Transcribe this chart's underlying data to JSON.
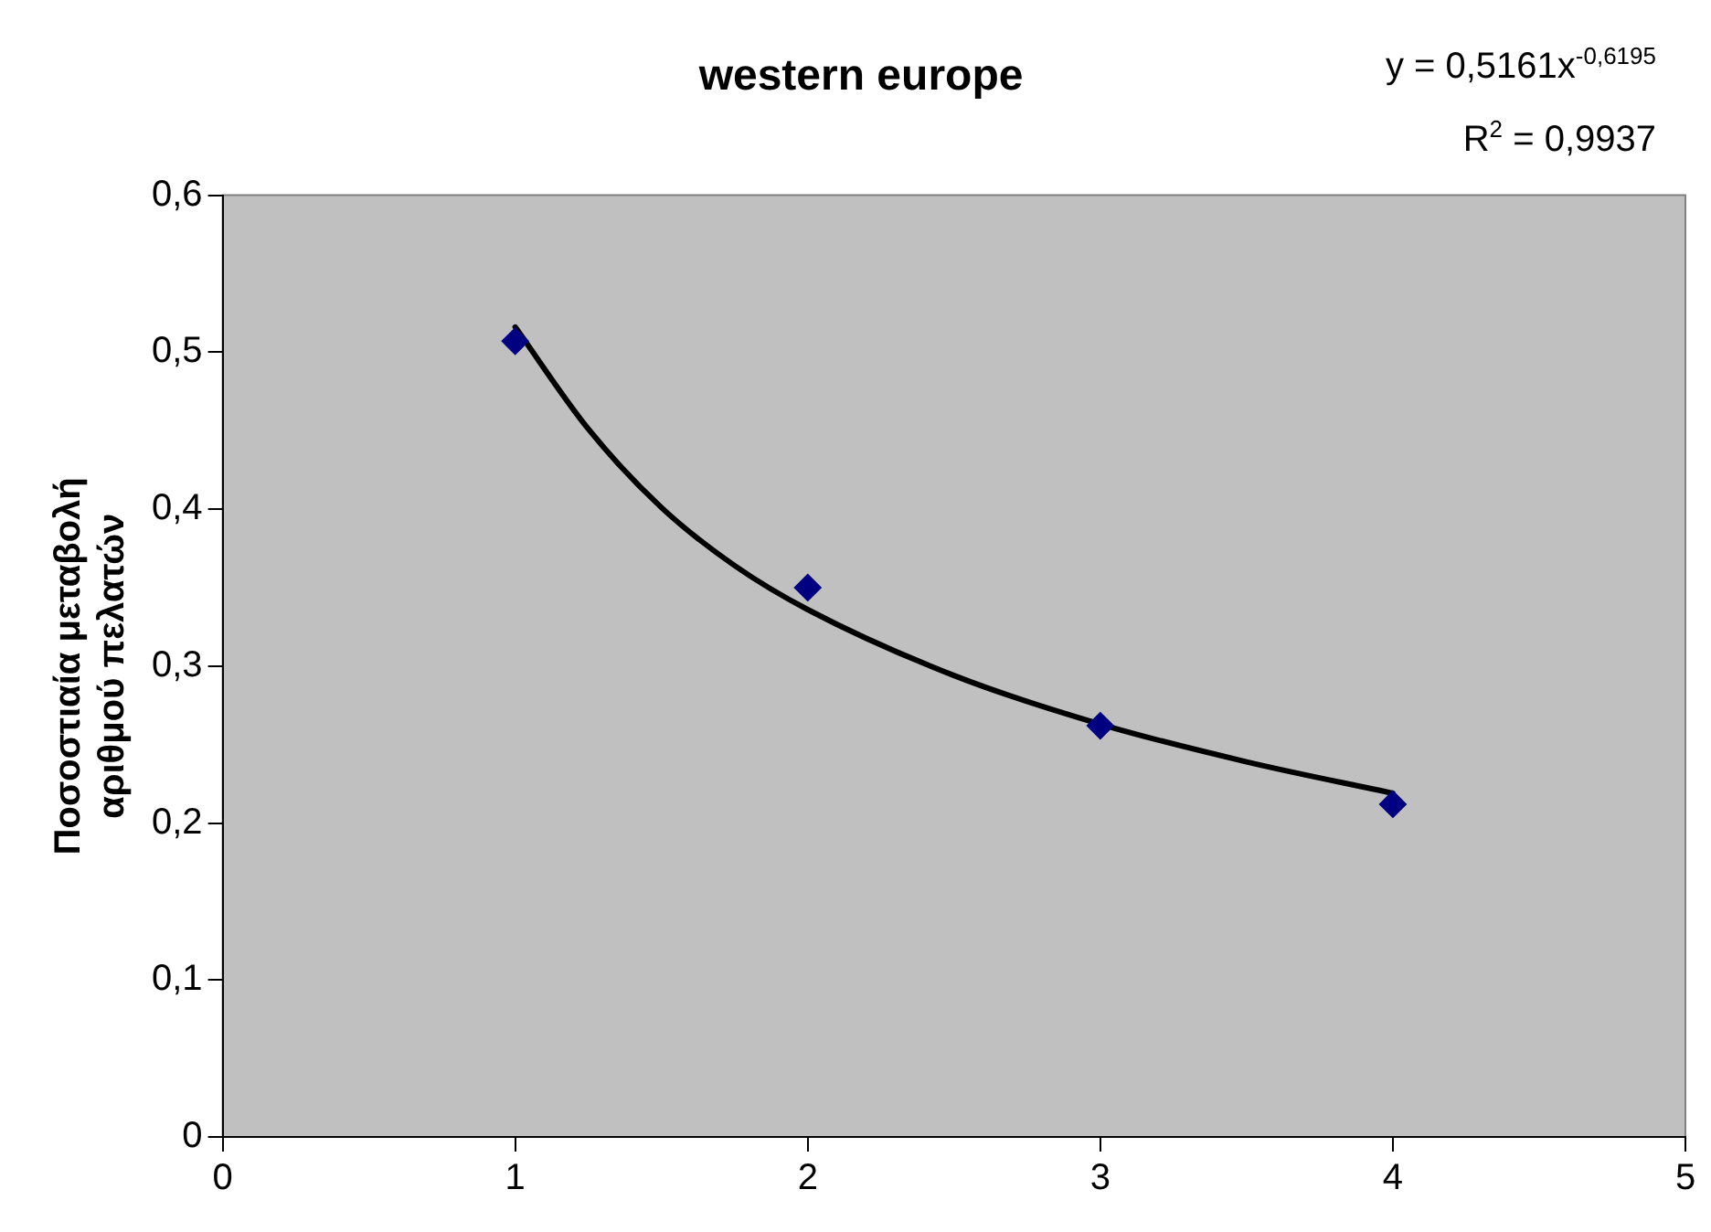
{
  "chart_data": {
    "type": "scatter",
    "title": "western europe",
    "ylabel": "Ποσοστιαία μεταβολή αριθμού πελατών",
    "annotations": [
      "y = 0,5161x$^{-0,6195}$",
      "R$^{2}$ = 0,9937"
    ],
    "x": [
      1,
      2,
      3,
      4
    ],
    "series": [
      {
        "type": "scatter",
        "color": "#000080",
        "marker": "diamond",
        "values": [
          0.507,
          0.35,
          0.262,
          0.212
        ]
      },
      {
        "type": "line",
        "color": "#000000",
        "marker": "none",
        "x": [
          1,
          1.25,
          1.5,
          1.75,
          2,
          2.5,
          3,
          3.5,
          4
        ],
        "values": [
          0.516,
          0.451,
          0.401,
          0.364,
          0.336,
          0.294,
          0.263,
          0.239,
          0.219
        ]
      }
    ],
    "xlim": [
      0,
      5
    ],
    "xticks": [
      0,
      1,
      2,
      3,
      4,
      5
    ],
    "ylim": [
      0,
      0.6
    ],
    "yticks": [
      {
        "value": 0,
        "label": "0"
      },
      {
        "value": 0.1,
        "label": "0,1"
      },
      {
        "value": 0.2,
        "label": "0,2"
      },
      {
        "value": 0.3,
        "label": "0,3"
      },
      {
        "value": 0.4,
        "label": "0,4"
      },
      {
        "value": 0.5,
        "label": "0,5"
      },
      {
        "value": 0.6,
        "label": "0,6"
      }
    ],
    "grid": false,
    "legend": false
  }
}
